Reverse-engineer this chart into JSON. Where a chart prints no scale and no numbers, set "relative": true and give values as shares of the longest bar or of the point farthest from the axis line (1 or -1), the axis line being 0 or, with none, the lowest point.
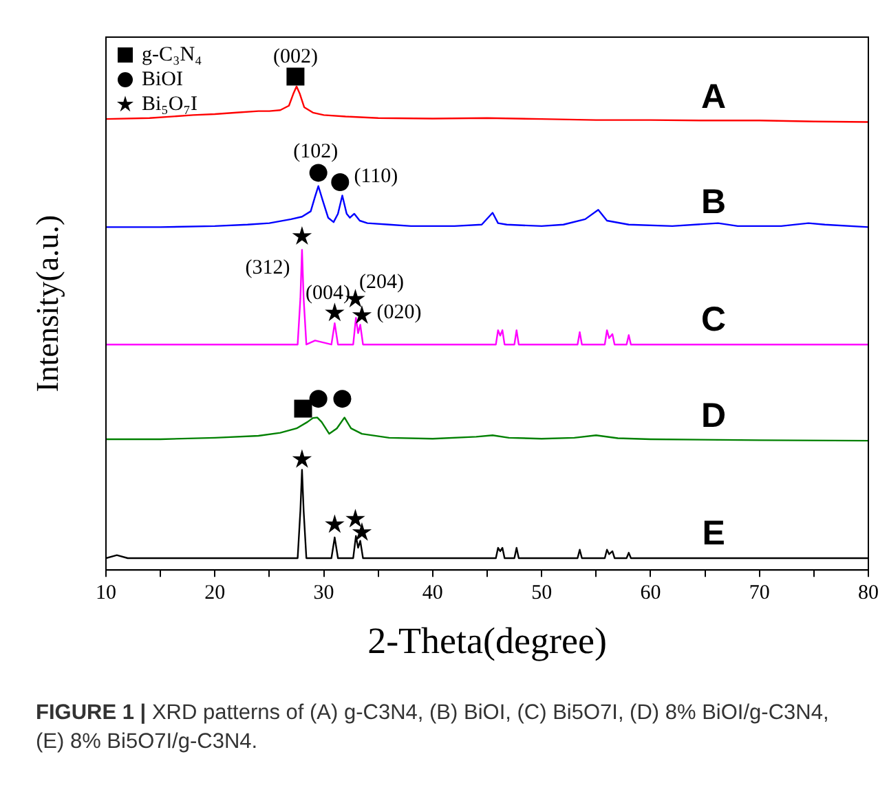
{
  "chart_data": {
    "type": "line",
    "relative": true,
    "xlabel": "2-Theta(degree)",
    "ylabel": "Intensity(a.u.)",
    "xlim": [
      10,
      80
    ],
    "xticks": [
      10,
      {
        "value": 15,
        "label": null
      },
      20,
      {
        "value": 25,
        "label": null
      },
      30,
      {
        "value": 35,
        "label": null
      },
      40,
      {
        "value": 45,
        "label": null
      },
      50,
      {
        "value": 55,
        "label": null
      },
      60,
      {
        "value": 65,
        "label": null
      },
      70,
      {
        "value": 75,
        "label": null
      },
      80
    ],
    "legend": "top left",
    "series": [
      {
        "name": "A",
        "color": "#ff0000",
        "x": [
          10,
          14,
          18,
          20,
          22,
          24,
          25,
          26,
          26.8,
          27.2,
          27.5,
          27.8,
          28.2,
          29,
          30,
          32,
          35,
          40,
          45,
          50,
          55,
          60,
          65,
          70,
          75,
          80
        ],
        "values": [
          0.914,
          0.916,
          0.922,
          0.924,
          0.927,
          0.93,
          0.93,
          0.932,
          0.941,
          0.965,
          0.98,
          0.965,
          0.938,
          0.927,
          0.922,
          0.919,
          0.916,
          0.915,
          0.916,
          0.914,
          0.912,
          0.912,
          0.911,
          0.911,
          0.909,
          0.908
        ]
      },
      {
        "name": "B",
        "color": "#0000ff",
        "x": [
          10,
          15,
          20,
          23,
          25,
          27,
          28,
          28.8,
          29.2,
          29.5,
          29.9,
          30.4,
          30.9,
          31.3,
          31.7,
          32.1,
          32.4,
          32.8,
          33.3,
          34,
          36,
          38,
          42,
          44.5,
          45.5,
          46,
          46.8,
          50,
          52,
          54,
          55.2,
          56,
          58,
          62,
          66.2,
          68,
          72,
          74.5,
          76,
          80
        ],
        "values": [
          0.695,
          0.695,
          0.697,
          0.7,
          0.703,
          0.711,
          0.716,
          0.727,
          0.757,
          0.778,
          0.749,
          0.714,
          0.705,
          0.722,
          0.759,
          0.722,
          0.714,
          0.722,
          0.708,
          0.703,
          0.7,
          0.697,
          0.697,
          0.7,
          0.724,
          0.703,
          0.7,
          0.697,
          0.7,
          0.711,
          0.73,
          0.708,
          0.7,
          0.697,
          0.703,
          0.697,
          0.697,
          0.703,
          0.7,
          0.695
        ]
      },
      {
        "name": "C",
        "color": "#ff00ff",
        "x": [
          10,
          20,
          27.6,
          27.85,
          28.0,
          28.15,
          28.4,
          29.2,
          30.7,
          31.0,
          31.3,
          32.7,
          32.95,
          33.15,
          33.35,
          33.6,
          34,
          45.8,
          46.0,
          46.2,
          46.4,
          46.6,
          47.5,
          47.7,
          47.9,
          53.3,
          53.5,
          53.7,
          55.8,
          56.0,
          56.2,
          56.5,
          56.7,
          57.8,
          58.0,
          58.2,
          70,
          80
        ],
        "values": [
          0.457,
          0.457,
          0.457,
          0.55,
          0.649,
          0.55,
          0.457,
          0.465,
          0.457,
          0.5,
          0.457,
          0.457,
          0.511,
          0.48,
          0.497,
          0.457,
          0.457,
          0.457,
          0.486,
          0.475,
          0.486,
          0.457,
          0.457,
          0.486,
          0.457,
          0.457,
          0.482,
          0.457,
          0.457,
          0.486,
          0.47,
          0.478,
          0.457,
          0.457,
          0.476,
          0.457,
          0.457,
          0.457
        ]
      },
      {
        "name": "D",
        "color": "#008000",
        "x": [
          10,
          15,
          20,
          24,
          26,
          27.5,
          28.5,
          29.0,
          29.4,
          29.8,
          30.5,
          31.2,
          31.9,
          32.5,
          33.5,
          36,
          40,
          44,
          45.5,
          47,
          50,
          53,
          55,
          57,
          60,
          70,
          80
        ],
        "values": [
          0.265,
          0.265,
          0.268,
          0.272,
          0.278,
          0.287,
          0.3,
          0.308,
          0.309,
          0.3,
          0.276,
          0.287,
          0.309,
          0.287,
          0.276,
          0.268,
          0.266,
          0.27,
          0.273,
          0.268,
          0.266,
          0.268,
          0.273,
          0.267,
          0.265,
          0.263,
          0.262
        ]
      },
      {
        "name": "E",
        "color": "#000000",
        "x": [
          10,
          11,
          12,
          20,
          27.6,
          27.85,
          28.0,
          28.15,
          28.4,
          30.7,
          31.0,
          31.3,
          32.7,
          32.95,
          33.15,
          33.35,
          33.6,
          45.8,
          46.0,
          46.2,
          46.4,
          46.6,
          47.5,
          47.7,
          47.9,
          53.3,
          53.5,
          53.7,
          55.8,
          56.0,
          56.2,
          56.5,
          56.7,
          57.8,
          58.0,
          58.2,
          70,
          80
        ],
        "values": [
          0.024,
          0.03,
          0.024,
          0.024,
          0.024,
          0.12,
          0.203,
          0.12,
          0.024,
          0.024,
          0.066,
          0.024,
          0.024,
          0.069,
          0.045,
          0.059,
          0.024,
          0.024,
          0.045,
          0.038,
          0.045,
          0.024,
          0.024,
          0.045,
          0.024,
          0.024,
          0.041,
          0.024,
          0.024,
          0.041,
          0.032,
          0.038,
          0.024,
          0.024,
          0.035,
          0.024,
          0.024,
          0.024
        ]
      },
      {
        "name": "g-C₃N₄",
        "type": "scatter",
        "marker": "square",
        "color": "#000000",
        "x": [
          27.4,
          28.1
        ],
        "values": [
          1.0,
          0.327
        ]
      },
      {
        "name": "BiOI",
        "type": "scatter",
        "marker": "circle",
        "color": "#000000",
        "x": [
          29.5,
          31.5,
          29.5,
          31.7
        ],
        "values": [
          0.805,
          0.786,
          0.347,
          0.347
        ]
      },
      {
        "name": "Bi₅O₇I",
        "type": "scatter",
        "marker": "star",
        "color": "#000000",
        "x": [
          28.0,
          31.0,
          32.9,
          33.5,
          28.0,
          31.0,
          32.9,
          33.5
        ],
        "values": [
          0.676,
          0.521,
          0.549,
          0.516,
          0.224,
          0.092,
          0.103,
          0.076
        ]
      }
    ],
    "annotations": [
      {
        "text": "(002)",
        "x": 27.4,
        "y": 1.0
      },
      {
        "text": "(102)",
        "x": 29.5,
        "y": 0.805
      },
      {
        "text": "(110)",
        "x": 31.5,
        "y": 0.786
      },
      {
        "text": "(312)",
        "x": 28.0,
        "y": 0.676
      },
      {
        "text": "(004)",
        "x": 31.0,
        "y": 0.521
      },
      {
        "text": "(204)",
        "x": 32.9,
        "y": 0.549
      },
      {
        "text": "(020)",
        "x": 33.5,
        "y": 0.516
      },
      "FIGURE 1 | XRD patterns of (A) g-C3N4, (B) BiOI, (C) Bi5O7I, (D) 8% BiOI/g-C3N4, (E) 8% Bi5O7I/g-C3N4."
    ]
  }
}
